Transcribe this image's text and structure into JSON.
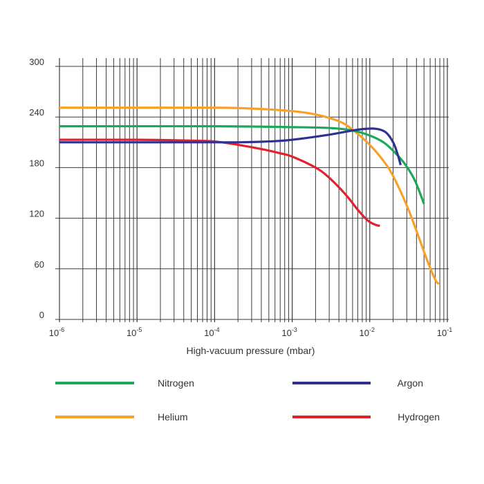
{
  "chart_data": {
    "type": "line",
    "title": "",
    "xlabel": "High-vacuum pressure (mbar)",
    "ylabel": "",
    "xscale": "log",
    "xlim": [
      1e-06,
      0.1
    ],
    "ylim": [
      0,
      300
    ],
    "grid": true,
    "y_ticks": [
      0,
      60,
      120,
      180,
      240,
      300
    ],
    "y_tick_labels": [
      "0",
      "60",
      "120",
      "180",
      "240",
      "300"
    ],
    "x_ticks": [
      {
        "value": 1e-06,
        "base": "10",
        "exp": "-6"
      },
      {
        "value": 1e-05,
        "base": "10",
        "exp": "-5"
      },
      {
        "value": 0.0001,
        "base": "10",
        "exp": "-4"
      },
      {
        "value": 0.001,
        "base": "10",
        "exp": "-3"
      },
      {
        "value": 0.01,
        "base": "10",
        "exp": "-2"
      },
      {
        "value": 0.1,
        "base": "10",
        "exp": "-1"
      }
    ],
    "legend_position": "bottom",
    "series": [
      {
        "name": "Nitrogen",
        "color": "#1aa85a",
        "points": [
          [
            1e-06,
            229
          ],
          [
            0.0001,
            229
          ],
          [
            0.001,
            228
          ],
          [
            0.003,
            227
          ],
          [
            0.006,
            224
          ],
          [
            0.01,
            218
          ],
          [
            0.015,
            210
          ],
          [
            0.02,
            200
          ],
          [
            0.028,
            185
          ],
          [
            0.038,
            165
          ],
          [
            0.05,
            137
          ]
        ]
      },
      {
        "name": "Argon",
        "color": "#2e3192",
        "points": [
          [
            1e-06,
            210
          ],
          [
            1e-05,
            210
          ],
          [
            0.0001,
            210
          ],
          [
            0.0002,
            210
          ],
          [
            0.0005,
            211
          ],
          [
            0.001,
            213
          ],
          [
            0.003,
            219
          ],
          [
            0.006,
            224
          ],
          [
            0.009,
            226
          ],
          [
            0.012,
            226
          ],
          [
            0.016,
            222
          ],
          [
            0.02,
            210
          ],
          [
            0.023,
            195
          ],
          [
            0.025,
            183
          ]
        ]
      },
      {
        "name": "Helium",
        "color": "#f7a128",
        "points": [
          [
            1e-06,
            251
          ],
          [
            1e-05,
            251
          ],
          [
            0.0001,
            251
          ],
          [
            0.0003,
            250
          ],
          [
            0.001,
            247
          ],
          [
            0.002,
            243
          ],
          [
            0.004,
            235
          ],
          [
            0.006,
            225
          ],
          [
            0.01,
            207
          ],
          [
            0.015,
            188
          ],
          [
            0.02,
            170
          ],
          [
            0.03,
            135
          ],
          [
            0.04,
            105
          ],
          [
            0.055,
            70
          ],
          [
            0.07,
            47
          ],
          [
            0.078,
            42
          ]
        ]
      },
      {
        "name": "Hydrogen",
        "color": "#e2212b",
        "points": [
          [
            1e-06,
            213
          ],
          [
            1e-05,
            213
          ],
          [
            5e-05,
            212
          ],
          [
            0.0001,
            211
          ],
          [
            0.0002,
            207
          ],
          [
            0.0004,
            202
          ],
          [
            0.0007,
            197
          ],
          [
            0.001,
            193
          ],
          [
            0.002,
            180
          ],
          [
            0.003,
            168
          ],
          [
            0.005,
            147
          ],
          [
            0.007,
            130
          ],
          [
            0.0095,
            117
          ],
          [
            0.012,
            112
          ],
          [
            0.0135,
            111
          ]
        ]
      }
    ]
  }
}
